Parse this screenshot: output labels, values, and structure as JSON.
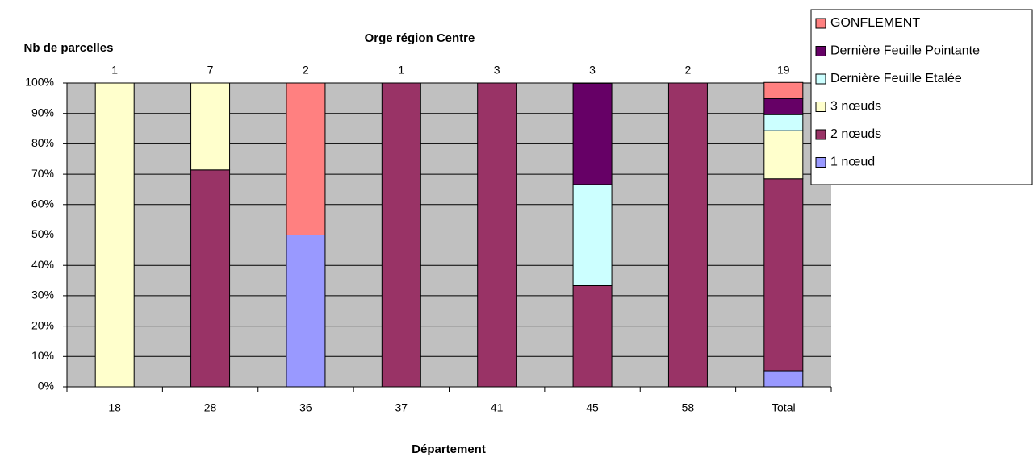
{
  "chart_data": {
    "type": "stacked_percent_bar",
    "title": "Orge région Centre",
    "y_label": "Nb de parcelles",
    "x_label": "Département",
    "categories": [
      "18",
      "28",
      "36",
      "37",
      "41",
      "45",
      "58",
      "Total"
    ],
    "counts": [
      "1",
      "7",
      "2",
      "1",
      "3",
      "3",
      "2",
      "19"
    ],
    "series": [
      {
        "name": "1 nœud",
        "color": "#9999ff",
        "values": [
          0,
          0,
          50,
          0,
          0,
          0,
          0,
          5.3
        ]
      },
      {
        "name": "2 nœuds",
        "color": "#993366",
        "values": [
          0,
          71.4,
          0,
          100,
          100,
          33.3,
          100,
          63.2
        ]
      },
      {
        "name": "3 nœuds",
        "color": "#ffffcc",
        "values": [
          100,
          28.6,
          0,
          0,
          0,
          0,
          0,
          15.8
        ]
      },
      {
        "name": "Dernière Feuille Etalée",
        "color": "#ccffff",
        "values": [
          0,
          0,
          0,
          0,
          0,
          33.3,
          0,
          5.3
        ]
      },
      {
        "name": "Dernière Feuille Pointante",
        "color": "#660066",
        "values": [
          0,
          0,
          0,
          0,
          0,
          33.3,
          0,
          5.3
        ]
      },
      {
        "name": "GONFLEMENT",
        "color": "#ff8080",
        "values": [
          0,
          0,
          50,
          0,
          0,
          0,
          0,
          5.3
        ]
      }
    ],
    "ylim": [
      0,
      100
    ],
    "yticks": [
      {
        "value": 0,
        "label": "0%"
      },
      {
        "value": 10,
        "label": "10%"
      },
      {
        "value": 20,
        "label": "20%"
      },
      {
        "value": 30,
        "label": "30%"
      },
      {
        "value": 40,
        "label": "40%"
      },
      {
        "value": 50,
        "label": "50%"
      },
      {
        "value": 60,
        "label": "60%"
      },
      {
        "value": 70,
        "label": "70%"
      },
      {
        "value": 80,
        "label": "80%"
      },
      {
        "value": 90,
        "label": "90%"
      },
      {
        "value": 100,
        "label": "100%"
      }
    ],
    "grid": true,
    "plot_background": "#c0c0c0",
    "legend": "top-right"
  }
}
